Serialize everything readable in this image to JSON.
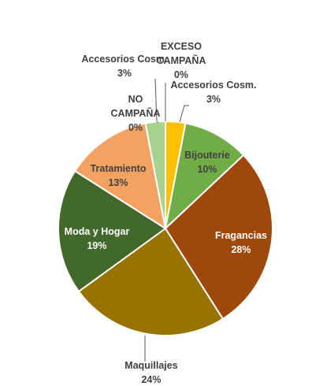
{
  "chart_data": {
    "type": "pie",
    "title": "",
    "slices": [
      {
        "name": "Accesorios Cosm.",
        "value": 3,
        "label": "3%",
        "color": "#ffc000",
        "text_color": "#404040"
      },
      {
        "name": "Bijouterie",
        "value": 10,
        "label": "10%",
        "color": "#70ad47",
        "text_color": "#404040"
      },
      {
        "name": "Fragancias",
        "value": 28,
        "label": "28%",
        "color": "#9e480e",
        "text_color": "#ffffff"
      },
      {
        "name": "Maquillajes",
        "value": 24,
        "label": "24%",
        "color": "#997300",
        "text_color": "#404040"
      },
      {
        "name": "Moda y Hogar",
        "value": 19,
        "label": "19%",
        "color": "#43682b",
        "text_color": "#ffffff"
      },
      {
        "name": "Tratamiento",
        "value": 13,
        "label": "13%",
        "color": "#f4a261",
        "text_color": "#404040"
      },
      {
        "name": "NO CAMPAÑA",
        "value": 0,
        "label": "0%",
        "color": "#c00000",
        "text_color": "#404040"
      },
      {
        "name": "Accesorios Cosm.",
        "value": 3,
        "label": "3%",
        "color": "#a9d18e",
        "text_color": "#404040"
      },
      {
        "name": "EXCESO CAMPAÑA",
        "value": 0,
        "label": "0%",
        "color": "#5b9bd5",
        "text_color": "#404040"
      }
    ],
    "legend": "none"
  }
}
